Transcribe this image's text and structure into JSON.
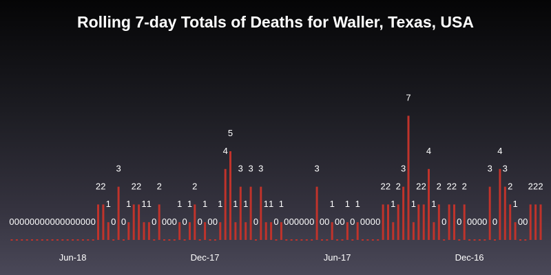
{
  "chart_data": {
    "type": "bar",
    "title": "Rolling 7-day Totals of Deaths for Waller, Texas, USA",
    "xlabel": "",
    "ylabel": "",
    "ylim": [
      0,
      7
    ],
    "x_order": "newest-first",
    "x_tick_labels": [
      "Jun-18",
      "Dec-17",
      "Jun-17",
      "Dec-16"
    ],
    "bar_color": "#c0332b",
    "values": [
      0,
      0,
      0,
      0,
      0,
      0,
      0,
      0,
      0,
      0,
      0,
      0,
      0,
      0,
      0,
      0,
      0,
      2,
      2,
      1,
      0,
      3,
      0,
      1,
      2,
      2,
      1,
      1,
      0,
      2,
      0,
      0,
      0,
      1,
      0,
      1,
      2,
      0,
      1,
      0,
      0,
      1,
      4,
      5,
      1,
      3,
      1,
      3,
      0,
      3,
      1,
      1,
      0,
      1,
      0,
      0,
      0,
      0,
      0,
      0,
      3,
      0,
      0,
      1,
      0,
      0,
      1,
      0,
      1,
      0,
      0,
      0,
      0,
      2,
      2,
      1,
      2,
      3,
      7,
      1,
      2,
      2,
      4,
      1,
      2,
      0,
      2,
      2,
      0,
      2,
      0,
      0,
      0,
      0,
      3,
      0,
      4,
      3,
      2,
      1,
      0,
      0,
      2,
      2,
      2
    ],
    "grid": false,
    "legend": "none"
  }
}
